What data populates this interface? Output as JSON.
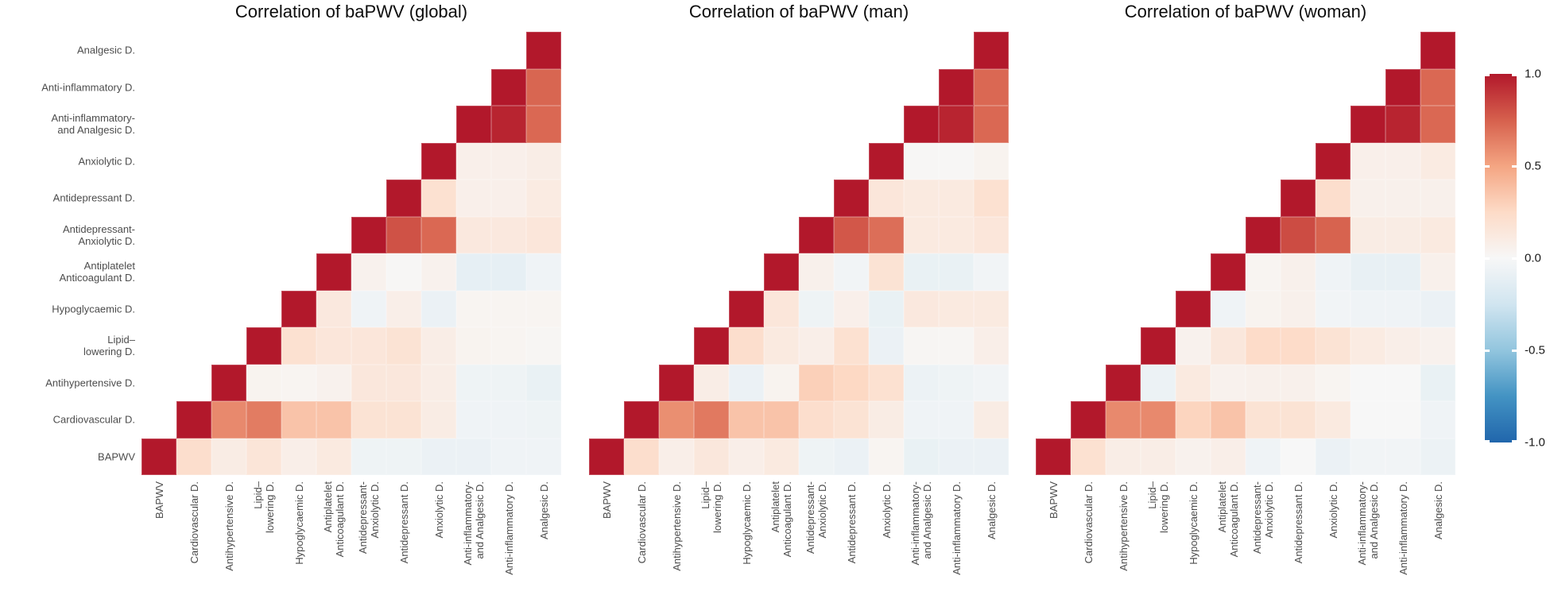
{
  "figure": {
    "kind": "triangular correlation heatmaps",
    "label_color": "#4d4d4d",
    "title_color": "#0d0d0d"
  },
  "legend": {
    "ticks": [
      {
        "label": "1.0",
        "value": 1.0
      },
      {
        "label": "0.5",
        "value": 0.5
      },
      {
        "label": "0.0",
        "value": 0.0
      },
      {
        "label": "-0.5",
        "value": -0.5
      },
      {
        "label": "-1.0",
        "value": -1.0
      }
    ]
  },
  "chart_data": {
    "type": "heatmap",
    "subtype": "upper-triangle correlation matrix, diagonal = 1",
    "colormap_stops": [
      {
        "v": 1.0,
        "color": "#b2182b"
      },
      {
        "v": 0.75,
        "color": "#d6604d"
      },
      {
        "v": 0.5,
        "color": "#f4a582"
      },
      {
        "v": 0.25,
        "color": "#fddbc7"
      },
      {
        "v": 0.0,
        "color": "#f7f7f7"
      },
      {
        "v": -0.25,
        "color": "#d1e5f0"
      },
      {
        "v": -0.5,
        "color": "#92c5de"
      },
      {
        "v": -0.75,
        "color": "#4393c3"
      },
      {
        "v": -1.0,
        "color": "#2166ac"
      }
    ],
    "value_range": [
      -1.0,
      1.0
    ],
    "variables_x": [
      "BAPWV",
      "Cardiovascular D.",
      "Antihypertensive D.",
      "Lipid–lowering D.",
      "Hypoglycaemic D.",
      "Antiplatelet Anticoagulant D.",
      "Antidepressant-Anxiolytic D.",
      "Antidepressant D.",
      "Anxiolytic D.",
      "Anti-inflammatory- and Analgesic D.",
      "Anti-inflammatory D.",
      "Analgesic D."
    ],
    "x_labels": [
      [
        "BAPWV"
      ],
      [
        "Cardiovascular D."
      ],
      [
        "Antihypertensive D."
      ],
      [
        "Lipid–",
        "lowering D."
      ],
      [
        "Hypoglycaemic D."
      ],
      [
        "Antiplatelet",
        "Anticoagulant D."
      ],
      [
        "Antidepressant-",
        "Anxiolytic D."
      ],
      [
        "Antidepressant D."
      ],
      [
        "Anxiolytic D."
      ],
      [
        "Anti-inflammatory-",
        "and Analgesic D."
      ],
      [
        "Anti-inflammatory D."
      ],
      [
        "Analgesic D."
      ]
    ],
    "y_labels": [
      [
        "Analgesic D."
      ],
      [
        "Anti-inflammatory D."
      ],
      [
        "Anti-inflammatory-",
        "and Analgesic D."
      ],
      [
        "Anxiolytic D."
      ],
      [
        "Antidepressant D."
      ],
      [
        "Antidepressant-",
        "Anxiolytic D."
      ],
      [
        "Antiplatelet",
        "Anticoagulant D."
      ],
      [
        "Hypoglycaemic D."
      ],
      [
        "Lipid–",
        "lowering D."
      ],
      [
        "Antihypertensive D."
      ],
      [
        "Cardiovascular D."
      ],
      [
        "BAPWV"
      ]
    ],
    "panels": [
      {
        "id": "global",
        "title": "Correlation of baPWV (global)",
        "matrix": [
          [
            null,
            null,
            null,
            null,
            null,
            null,
            null,
            null,
            null,
            null,
            null,
            1.0
          ],
          [
            null,
            null,
            null,
            null,
            null,
            null,
            null,
            null,
            null,
            null,
            1.0,
            0.73
          ],
          [
            null,
            null,
            null,
            null,
            null,
            null,
            null,
            null,
            null,
            1.0,
            0.96,
            0.72
          ],
          [
            null,
            null,
            null,
            null,
            null,
            null,
            null,
            null,
            1.0,
            0.07,
            0.07,
            0.09
          ],
          [
            null,
            null,
            null,
            null,
            null,
            null,
            null,
            1.0,
            0.2,
            0.07,
            0.07,
            0.11
          ],
          [
            null,
            null,
            null,
            null,
            null,
            null,
            1.0,
            0.8,
            0.72,
            0.13,
            0.13,
            0.15
          ],
          [
            null,
            null,
            null,
            null,
            null,
            1.0,
            0.05,
            0.01,
            0.05,
            -0.11,
            -0.11,
            -0.05
          ],
          [
            null,
            null,
            null,
            null,
            1.0,
            0.13,
            -0.05,
            0.08,
            -0.08,
            0.03,
            0.03,
            0.03
          ],
          [
            null,
            null,
            null,
            1.0,
            0.2,
            0.15,
            0.15,
            0.18,
            0.09,
            0.04,
            0.03,
            0.02
          ],
          [
            null,
            null,
            1.0,
            0.04,
            0.03,
            0.05,
            0.14,
            0.14,
            0.09,
            -0.06,
            -0.06,
            -0.09
          ],
          [
            null,
            1.0,
            0.6,
            0.65,
            0.36,
            0.36,
            0.18,
            0.18,
            0.1,
            -0.05,
            -0.05,
            -0.06
          ],
          [
            1.0,
            0.22,
            0.1,
            0.16,
            0.08,
            0.12,
            -0.06,
            -0.06,
            -0.08,
            -0.08,
            -0.05,
            -0.05
          ]
        ]
      },
      {
        "id": "man",
        "title": "Correlation of baPWV (man)",
        "matrix": [
          [
            null,
            null,
            null,
            null,
            null,
            null,
            null,
            null,
            null,
            null,
            null,
            1.0
          ],
          [
            null,
            null,
            null,
            null,
            null,
            null,
            null,
            null,
            null,
            null,
            1.0,
            0.72
          ],
          [
            null,
            null,
            null,
            null,
            null,
            null,
            null,
            null,
            null,
            1.0,
            0.96,
            0.72
          ],
          [
            null,
            null,
            null,
            null,
            null,
            null,
            null,
            null,
            1.0,
            0.01,
            0.01,
            0.04
          ],
          [
            null,
            null,
            null,
            null,
            null,
            null,
            null,
            1.0,
            0.15,
            0.12,
            0.12,
            0.2
          ],
          [
            null,
            null,
            null,
            null,
            null,
            null,
            1.0,
            0.78,
            0.7,
            0.12,
            0.12,
            0.15
          ],
          [
            null,
            null,
            null,
            null,
            null,
            1.0,
            0.06,
            -0.04,
            0.18,
            -0.09,
            -0.09,
            -0.04
          ],
          [
            null,
            null,
            null,
            null,
            1.0,
            0.15,
            -0.06,
            0.07,
            -0.09,
            0.13,
            0.12,
            0.12
          ],
          [
            null,
            null,
            null,
            1.0,
            0.22,
            0.12,
            0.08,
            0.2,
            -0.08,
            0.02,
            0.02,
            0.08
          ],
          [
            null,
            null,
            1.0,
            0.09,
            -0.08,
            0.04,
            0.3,
            0.26,
            0.2,
            -0.07,
            -0.06,
            -0.04
          ],
          [
            null,
            1.0,
            0.58,
            0.66,
            0.36,
            0.36,
            0.22,
            0.18,
            0.1,
            -0.05,
            -0.05,
            0.1
          ],
          [
            1.0,
            0.22,
            0.08,
            0.14,
            0.08,
            0.12,
            -0.06,
            -0.08,
            0.03,
            -0.09,
            -0.08,
            -0.08
          ]
        ]
      },
      {
        "id": "woman",
        "title": "Correlation of baPWV (woman)",
        "matrix": [
          [
            null,
            null,
            null,
            null,
            null,
            null,
            null,
            null,
            null,
            null,
            null,
            1.0
          ],
          [
            null,
            null,
            null,
            null,
            null,
            null,
            null,
            null,
            null,
            null,
            1.0,
            0.72
          ],
          [
            null,
            null,
            null,
            null,
            null,
            null,
            null,
            null,
            null,
            1.0,
            0.96,
            0.72
          ],
          [
            null,
            null,
            null,
            null,
            null,
            null,
            null,
            null,
            1.0,
            0.07,
            0.07,
            0.11
          ],
          [
            null,
            null,
            null,
            null,
            null,
            null,
            null,
            1.0,
            0.22,
            0.06,
            0.06,
            0.06
          ],
          [
            null,
            null,
            null,
            null,
            null,
            null,
            1.0,
            0.82,
            0.74,
            0.1,
            0.1,
            0.12
          ],
          [
            null,
            null,
            null,
            null,
            null,
            1.0,
            0.03,
            0.06,
            -0.05,
            -0.1,
            -0.1,
            0.06
          ],
          [
            null,
            null,
            null,
            null,
            1.0,
            -0.05,
            0.04,
            0.06,
            -0.04,
            -0.05,
            -0.05,
            -0.08
          ],
          [
            null,
            null,
            null,
            1.0,
            0.05,
            0.14,
            0.24,
            0.24,
            0.18,
            0.11,
            0.08,
            0.05
          ],
          [
            null,
            null,
            1.0,
            -0.07,
            0.12,
            0.05,
            0.06,
            0.06,
            0.03,
            0.0,
            0.0,
            -0.09
          ],
          [
            null,
            1.0,
            0.6,
            0.6,
            0.28,
            0.36,
            0.18,
            0.18,
            0.12,
            0.0,
            0.0,
            -0.05
          ],
          [
            1.0,
            0.2,
            0.09,
            0.09,
            0.05,
            0.08,
            -0.05,
            0.0,
            -0.08,
            -0.04,
            -0.04,
            -0.07
          ]
        ]
      }
    ]
  }
}
